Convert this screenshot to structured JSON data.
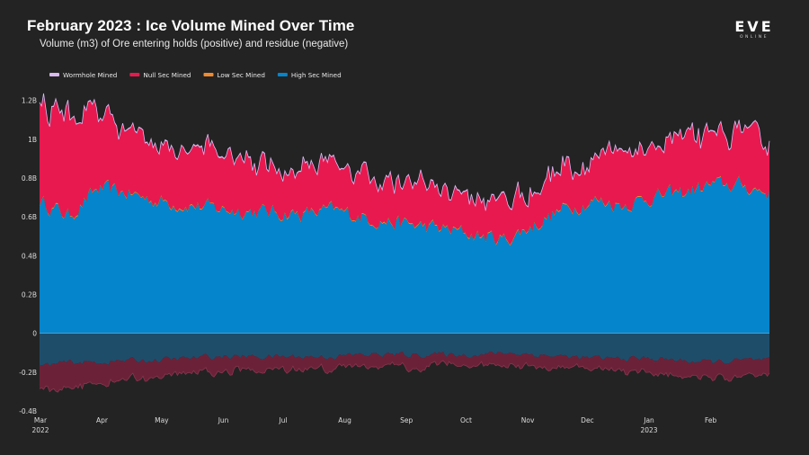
{
  "header": {
    "title": "February 2023 : Ice Volume Mined Over Time",
    "subtitle": "Volume (m3) of Ore entering holds (positive) and residue (negative)"
  },
  "logo": {
    "main": "EVE",
    "sub": "ONLINE"
  },
  "colors": {
    "background": "#232323",
    "wormhole": "#d9b8f0",
    "nullsec": "#e8194f",
    "lowsec": "#f08a30",
    "highsec": "#0585cc",
    "neg_highsec": "#1e4d6a",
    "neg_nullsec": "#6b2238",
    "zero_line": "#dddddd"
  },
  "chart_data": {
    "type": "area",
    "stacked": true,
    "title": "February 2023 : Ice Volume Mined Over Time",
    "ylabel": "Volume (m3)",
    "xlabel": "",
    "ylim": [
      -0.4,
      1.3
    ],
    "yticks": [
      {
        "value": 1.2,
        "label": "1.2B"
      },
      {
        "value": 1.0,
        "label": "1B"
      },
      {
        "value": 0.8,
        "label": "0.8B"
      },
      {
        "value": 0.6,
        "label": "0.6B"
      },
      {
        "value": 0.4,
        "label": "0.4B"
      },
      {
        "value": 0.2,
        "label": "0.2B"
      },
      {
        "value": 0.0,
        "label": "0"
      },
      {
        "value": -0.2,
        "label": "-0.2B"
      },
      {
        "value": -0.4,
        "label": "-0.4B"
      }
    ],
    "xticks": [
      {
        "label": "Mar",
        "year": "2022",
        "pos": 0.0
      },
      {
        "label": "Apr",
        "year": "",
        "pos": 0.0844
      },
      {
        "label": "May",
        "year": "",
        "pos": 0.1661
      },
      {
        "label": "Jun",
        "year": "",
        "pos": 0.2507
      },
      {
        "label": "Jul",
        "year": "",
        "pos": 0.3324
      },
      {
        "label": "Aug",
        "year": "",
        "pos": 0.4169
      },
      {
        "label": "Sep",
        "year": "",
        "pos": 0.5014
      },
      {
        "label": "Oct",
        "year": "",
        "pos": 0.5831
      },
      {
        "label": "Nov",
        "year": "",
        "pos": 0.6676
      },
      {
        "label": "Dec",
        "year": "",
        "pos": 0.7493
      },
      {
        "label": "Jan",
        "year": "2023",
        "pos": 0.8338
      },
      {
        "label": "Feb",
        "year": "",
        "pos": 0.9183
      }
    ],
    "legend": {
      "position": "top-left",
      "entries": [
        {
          "name": "Wormhole Mined",
          "color": "#d9b8f0"
        },
        {
          "name": "Null Sec Mined",
          "color": "#e8194f"
        },
        {
          "name": "Low Sec Mined",
          "color": "#f08a30"
        },
        {
          "name": "High Sec Mined",
          "color": "#0585cc"
        }
      ]
    },
    "x": [
      0,
      0.04,
      0.08,
      0.12,
      0.16,
      0.2,
      0.24,
      0.28,
      0.32,
      0.36,
      0.4,
      0.44,
      0.48,
      0.52,
      0.56,
      0.6,
      0.64,
      0.68,
      0.72,
      0.76,
      0.8,
      0.84,
      0.88,
      0.92,
      0.96,
      1.0
    ],
    "series": [
      {
        "name": "High Sec Mined",
        "stack": "positive",
        "values": [
          0.68,
          0.6,
          0.74,
          0.72,
          0.68,
          0.66,
          0.64,
          0.63,
          0.62,
          0.61,
          0.63,
          0.6,
          0.57,
          0.55,
          0.53,
          0.5,
          0.48,
          0.56,
          0.64,
          0.68,
          0.66,
          0.7,
          0.72,
          0.76,
          0.76,
          0.72
        ]
      },
      {
        "name": "Low Sec Mined",
        "stack": "positive",
        "values": [
          0.005,
          0.005,
          0.005,
          0.005,
          0.005,
          0.005,
          0.005,
          0.005,
          0.005,
          0.005,
          0.005,
          0.005,
          0.005,
          0.005,
          0.005,
          0.005,
          0.005,
          0.005,
          0.005,
          0.005,
          0.005,
          0.005,
          0.005,
          0.005,
          0.005,
          0.005
        ]
      },
      {
        "name": "Null Sec Mined",
        "stack": "positive",
        "values": [
          0.5,
          0.52,
          0.38,
          0.32,
          0.28,
          0.3,
          0.28,
          0.28,
          0.24,
          0.22,
          0.25,
          0.22,
          0.22,
          0.2,
          0.2,
          0.18,
          0.2,
          0.18,
          0.22,
          0.22,
          0.26,
          0.25,
          0.28,
          0.22,
          0.28,
          0.26
        ]
      },
      {
        "name": "Wormhole Mined",
        "stack": "positive",
        "values": [
          0.005,
          0.005,
          0.005,
          0.005,
          0.005,
          0.005,
          0.005,
          0.005,
          0.005,
          0.005,
          0.005,
          0.005,
          0.005,
          0.005,
          0.005,
          0.005,
          0.005,
          0.005,
          0.005,
          0.005,
          0.005,
          0.005,
          0.005,
          0.005,
          0.005,
          0.005
        ]
      },
      {
        "name": "High Sec Residue",
        "stack": "negative",
        "values": [
          -0.17,
          -0.15,
          -0.15,
          -0.14,
          -0.14,
          -0.13,
          -0.12,
          -0.12,
          -0.12,
          -0.12,
          -0.12,
          -0.11,
          -0.11,
          -0.11,
          -0.11,
          -0.11,
          -0.1,
          -0.11,
          -0.12,
          -0.13,
          -0.13,
          -0.13,
          -0.14,
          -0.15,
          -0.14,
          -0.14
        ]
      },
      {
        "name": "Null Sec Residue",
        "stack": "negative",
        "values": [
          -0.13,
          -0.14,
          -0.1,
          -0.1,
          -0.08,
          -0.08,
          -0.08,
          -0.07,
          -0.07,
          -0.06,
          -0.06,
          -0.06,
          -0.06,
          -0.06,
          -0.05,
          -0.05,
          -0.06,
          -0.06,
          -0.06,
          -0.06,
          -0.06,
          -0.07,
          -0.08,
          -0.08,
          -0.09,
          -0.09
        ]
      }
    ]
  }
}
